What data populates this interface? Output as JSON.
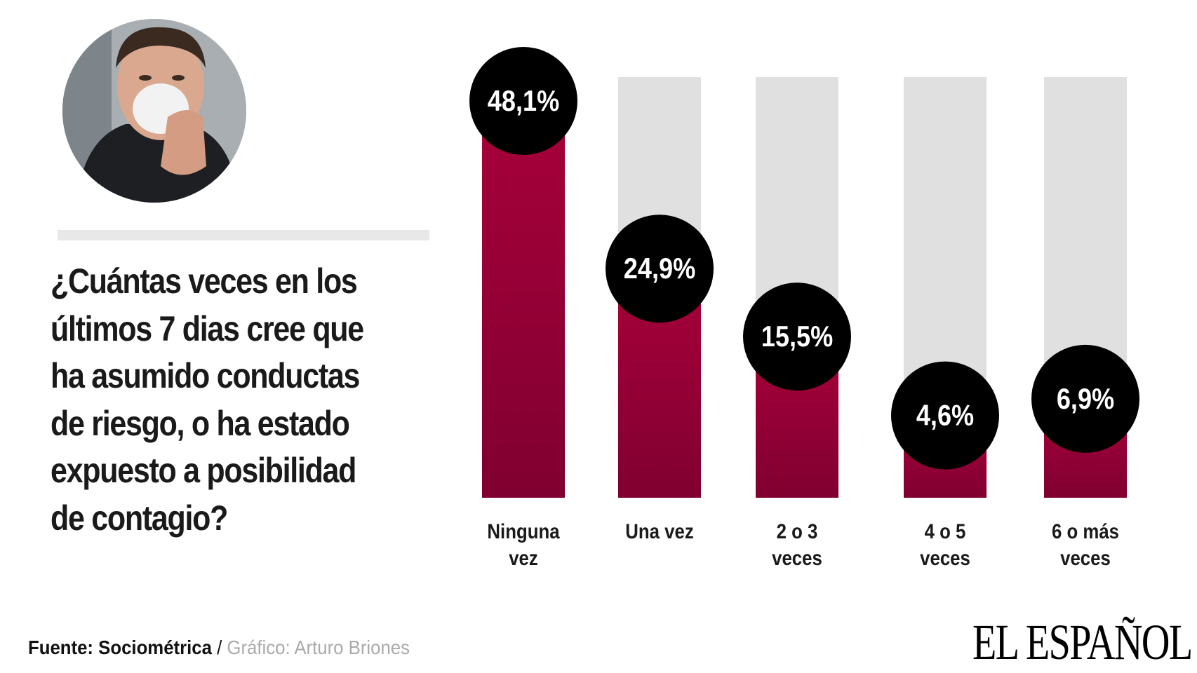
{
  "question": {
    "lines": [
      "¿Cuántas veces en los",
      "últimos 7 dias cree que",
      "ha asumido conductas",
      "de riesgo, o ha estado",
      "expuesto a posibilidad",
      "de contagio?"
    ]
  },
  "chart_data": {
    "type": "bar",
    "title": "¿Cuántas veces en los últimos 7 dias cree que ha asumido conductas de riesgo, o ha estado expuesto a posibilidad de contagio?",
    "categories": [
      [
        "Ninguna",
        "vez"
      ],
      [
        "Una vez"
      ],
      [
        "2 o 3",
        "veces"
      ],
      [
        "4 o 5",
        "veces"
      ],
      [
        "6 o más",
        "veces"
      ]
    ],
    "values": [
      48.1,
      24.9,
      15.5,
      4.6,
      6.9
    ],
    "value_labels": [
      "48,1%",
      "24,9%",
      "15,5%",
      "4,6%",
      "6,9%"
    ],
    "unit": "%",
    "ylim": [
      0,
      50
    ],
    "grid": false,
    "colors": {
      "bar": "#a8003a",
      "bar_dark": "#800030",
      "track": "#e0e0e0",
      "badge": "#000000",
      "badge_text": "#ffffff"
    }
  },
  "footer": {
    "source": "Fuente: Sociométrica",
    "separator": " / ",
    "credit": "Gráfico: Arturo Briones"
  },
  "logo": {
    "text": "EL ESPAÑOL"
  },
  "photo": {
    "subject": "man-wearing-face-mask"
  }
}
